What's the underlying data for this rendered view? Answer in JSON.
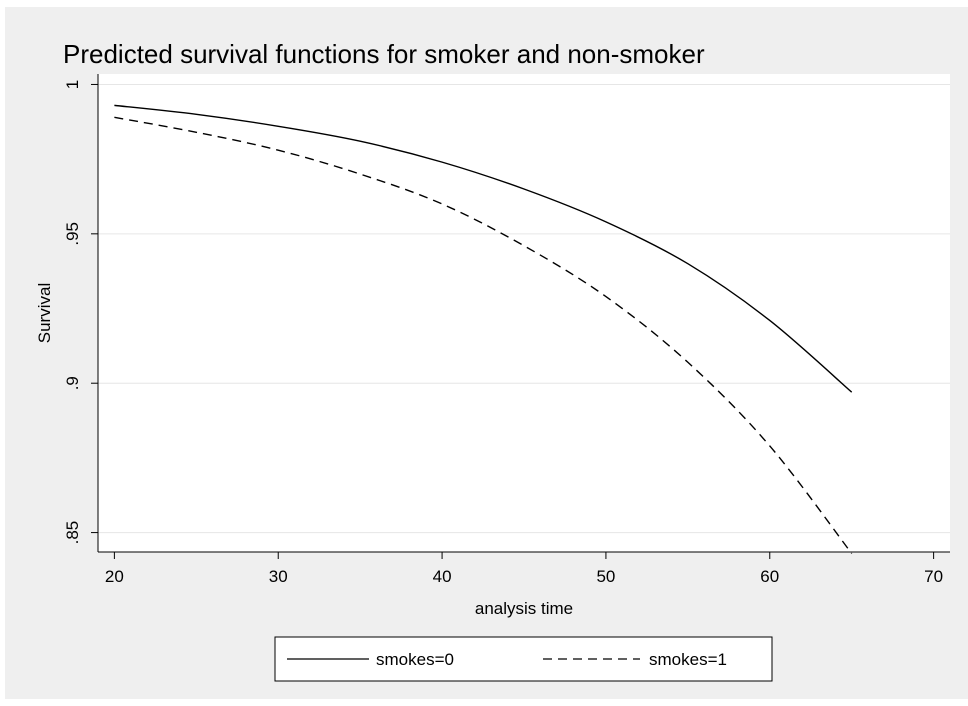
{
  "chart_data": {
    "type": "line",
    "title": "Predicted survival functions for smoker and non-smoker",
    "xlabel": "analysis time",
    "ylabel": "Survival",
    "xlim": [
      19,
      71
    ],
    "ylim": [
      0.8435,
      1.0035
    ],
    "xticks": [
      20,
      30,
      40,
      50,
      60,
      70
    ],
    "xtick_labels": [
      "20",
      "30",
      "40",
      "50",
      "60",
      "70"
    ],
    "yticks": [
      0.85,
      0.9,
      0.95,
      1.0
    ],
    "ytick_labels": [
      ".85",
      ".9",
      ".95",
      "1"
    ],
    "grid": true,
    "legend_position": "bottom-center",
    "series": [
      {
        "name": "smokes=0",
        "style": "solid",
        "color": "#000000",
        "x": [
          20,
          25,
          30,
          35,
          40,
          45,
          50,
          55,
          60,
          65
        ],
        "y": [
          0.993,
          0.99,
          0.986,
          0.981,
          0.974,
          0.965,
          0.954,
          0.94,
          0.921,
          0.897
        ]
      },
      {
        "name": "smokes=1",
        "style": "dashed",
        "color": "#000000",
        "x": [
          20,
          25,
          30,
          35,
          40,
          45,
          50,
          55,
          60,
          65
        ],
        "y": [
          0.989,
          0.984,
          0.978,
          0.97,
          0.96,
          0.946,
          0.929,
          0.907,
          0.879,
          0.843
        ]
      }
    ]
  }
}
